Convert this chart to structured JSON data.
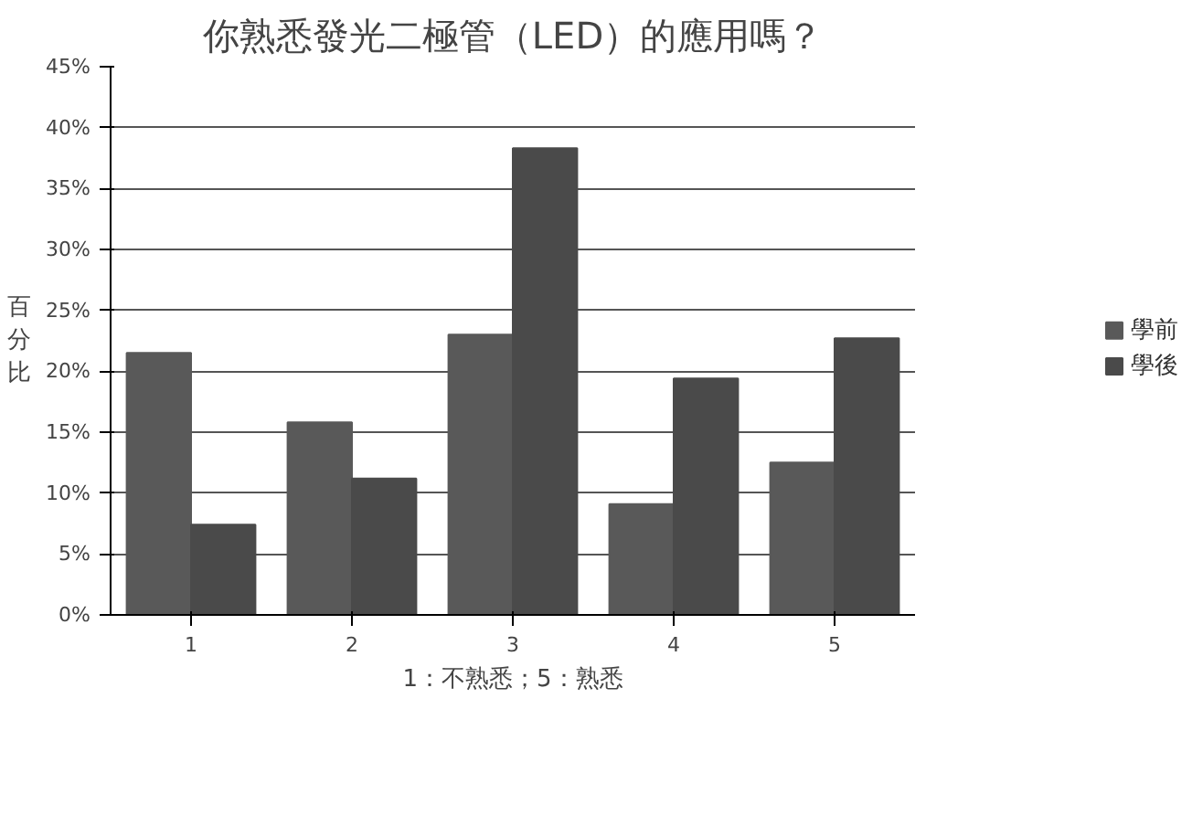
{
  "chart_data": {
    "type": "bar",
    "title": "你熟悉發光二極管（LED）的應用嗎？",
    "xlabel": "1：不熟悉；5：熟悉",
    "ylabel": "百分比",
    "categories": [
      "1",
      "2",
      "3",
      "4",
      "5"
    ],
    "series": [
      {
        "name": "學前",
        "color": "#595959",
        "values": [
          21.5,
          15.8,
          23,
          9.1,
          12.5
        ]
      },
      {
        "name": "學後",
        "color": "#4a4a4a",
        "values": [
          7.4,
          11.2,
          38.3,
          19.4,
          22.7
        ]
      }
    ],
    "ylim": [
      0,
      45
    ],
    "yticks": [
      {
        "value": 0,
        "label": "0%"
      },
      {
        "value": 5,
        "label": "5%"
      },
      {
        "value": 10,
        "label": "10%"
      },
      {
        "value": 15,
        "label": "15%"
      },
      {
        "value": 20,
        "label": "20%"
      },
      {
        "value": 25,
        "label": "25%"
      },
      {
        "value": 30,
        "label": "30%"
      },
      {
        "value": 35,
        "label": "35%"
      },
      {
        "value": 40,
        "label": "40%"
      },
      {
        "value": 45,
        "label": "45%"
      }
    ],
    "grid": "y",
    "legend": "right"
  }
}
